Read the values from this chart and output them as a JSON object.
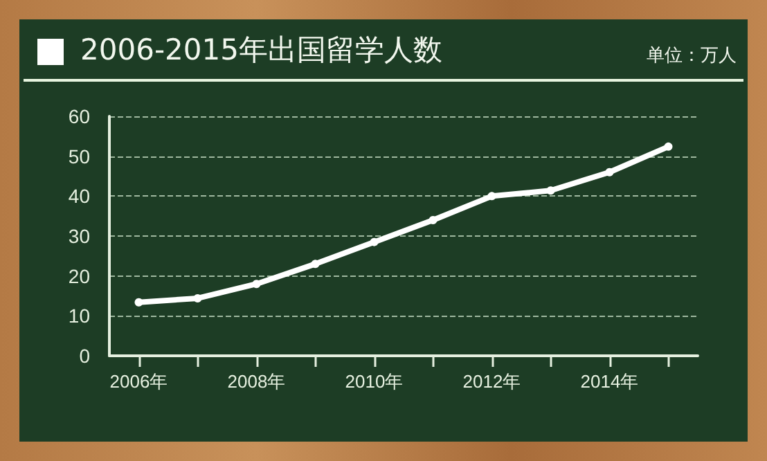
{
  "chart_data": {
    "type": "line",
    "title": "2006-2015年出国留学人数",
    "annotations": [
      "单位：万人"
    ],
    "categories": [
      "2006年",
      null,
      "2008年",
      null,
      "2010年",
      null,
      "2012年",
      null,
      "2014年",
      null
    ],
    "values": [
      13.4,
      14.4,
      18.0,
      23.0,
      28.5,
      34.0,
      40.0,
      41.4,
      46.0,
      52.4
    ],
    "color": "#ffffff",
    "ylim": [
      0,
      60
    ],
    "yticks": [
      0,
      10,
      20,
      30,
      40,
      50,
      60
    ],
    "grid": "y",
    "marker": "circle",
    "line_style": "solid"
  }
}
